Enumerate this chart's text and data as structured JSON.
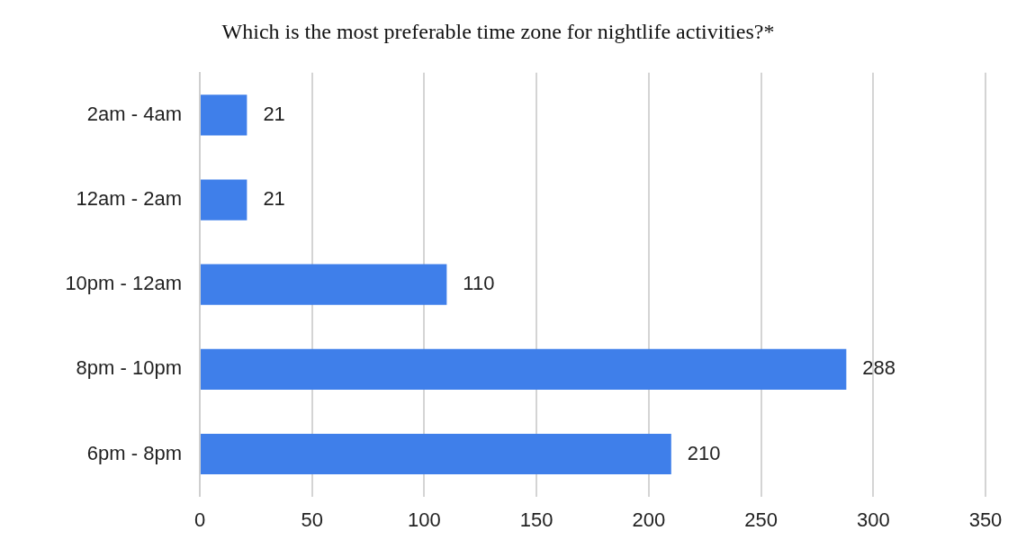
{
  "chart_data": {
    "type": "bar",
    "orientation": "horizontal",
    "title": "Which is the most preferable time zone for nightlife activities?*",
    "categories": [
      "2am - 4am",
      "12am - 2am",
      "10pm - 12am",
      "8pm - 10pm",
      "6pm - 8pm"
    ],
    "values": [
      21,
      21,
      110,
      288,
      210
    ],
    "color": "#3f7fea",
    "xlim": [
      0,
      350
    ],
    "xticks": [
      0,
      50,
      100,
      150,
      200,
      250,
      300,
      350
    ],
    "grid": "x",
    "data_labels": true,
    "legend": false
  }
}
